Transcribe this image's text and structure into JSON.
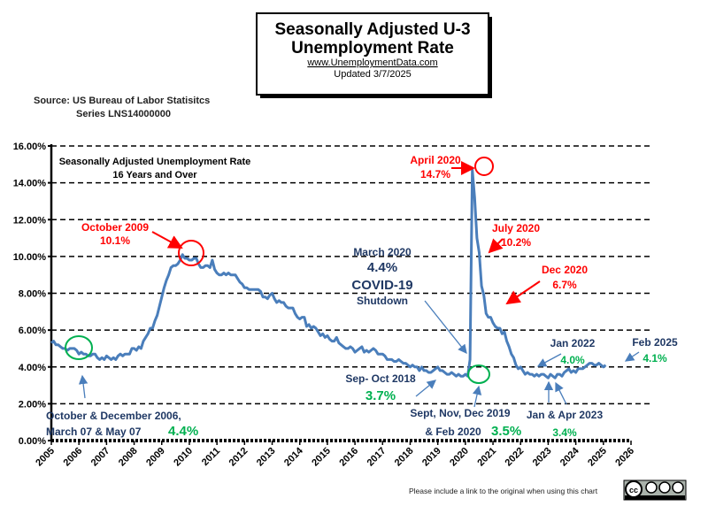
{
  "header": {
    "title_line1": "Seasonally Adjusted U-3",
    "title_line2": "Unemployment Rate",
    "url": "www.UnemploymentData.com",
    "updated": "Updated  3/7/2025"
  },
  "source": {
    "line1": "Source:  US  Bureau of Labor Statisitcs",
    "line2": "Series LNS14000000"
  },
  "footer": {
    "note": "Please include a link to the original when using this chart",
    "license_logo": "cc by-nc-nd"
  },
  "chart_data": {
    "type": "line",
    "title": "Seasonally Adjusted Unemployment Rate",
    "subtitle": "16 Years and Over",
    "xlabel": "",
    "ylabel": "",
    "x_ticks": [
      "2005",
      "2006",
      "2007",
      "2008",
      "2009",
      "2010",
      "2011",
      "2012",
      "2013",
      "2014",
      "2015",
      "2016",
      "2017",
      "2018",
      "2019",
      "2020",
      "2021",
      "2022",
      "2023",
      "2024",
      "2025",
      "2026"
    ],
    "y_ticks": [
      "0.00%",
      "2.00%",
      "4.00%",
      "6.00%",
      "8.00%",
      "10.00%",
      "12.00%",
      "14.00%",
      "16.00%"
    ],
    "xlim": [
      2005,
      2026
    ],
    "ylim": [
      0,
      16
    ],
    "grid": "horizontal dashed",
    "line_color": "#4a7ebb",
    "series": [
      {
        "start": "2005-01",
        "frequency": "monthly",
        "values": [
          5.3,
          5.4,
          5.2,
          5.2,
          5.1,
          5.0,
          5.0,
          4.9,
          5.0,
          5.0,
          5.0,
          4.9,
          4.7,
          4.8,
          4.7,
          4.7,
          4.6,
          4.6,
          4.7,
          4.7,
          4.5,
          4.4,
          4.5,
          4.4,
          4.6,
          4.5,
          4.4,
          4.5,
          4.4,
          4.6,
          4.7,
          4.6,
          4.7,
          4.7,
          4.7,
          5.0,
          5.0,
          4.9,
          5.1,
          5.0,
          5.4,
          5.6,
          5.8,
          6.1,
          6.1,
          6.5,
          6.8,
          7.3,
          7.8,
          8.3,
          8.7,
          9.0,
          9.4,
          9.5,
          9.5,
          9.6,
          9.8,
          10.1,
          9.9,
          9.9,
          9.8,
          9.8,
          9.9,
          9.9,
          9.6,
          9.4,
          9.4,
          9.5,
          9.5,
          9.4,
          9.8,
          9.3,
          9.1,
          9.0,
          9.0,
          9.1,
          9.0,
          9.1,
          9.0,
          9.0,
          9.0,
          8.8,
          8.6,
          8.5,
          8.3,
          8.3,
          8.2,
          8.2,
          8.2,
          8.2,
          8.2,
          8.1,
          7.8,
          7.8,
          7.7,
          7.9,
          8.0,
          7.7,
          7.5,
          7.6,
          7.5,
          7.5,
          7.3,
          7.2,
          7.2,
          7.2,
          6.9,
          6.7,
          6.6,
          6.7,
          6.7,
          6.2,
          6.3,
          6.1,
          6.2,
          6.1,
          5.9,
          5.7,
          5.8,
          5.6,
          5.7,
          5.5,
          5.4,
          5.4,
          5.6,
          5.3,
          5.2,
          5.1,
          5.0,
          5.0,
          5.1,
          5.0,
          4.8,
          4.9,
          5.0,
          5.1,
          4.8,
          4.9,
          4.8,
          4.9,
          5.0,
          4.9,
          4.7,
          4.7,
          4.7,
          4.6,
          4.4,
          4.4,
          4.4,
          4.3,
          4.3,
          4.4,
          4.3,
          4.2,
          4.2,
          4.1,
          4.0,
          4.1,
          4.0,
          4.0,
          3.8,
          4.0,
          3.8,
          3.8,
          3.7,
          3.7,
          3.8,
          3.9,
          4.0,
          3.8,
          3.8,
          3.7,
          3.6,
          3.6,
          3.7,
          3.6,
          3.5,
          3.6,
          3.5,
          3.5,
          3.6,
          3.5,
          4.4,
          14.7,
          13.2,
          11.0,
          10.2,
          8.4,
          7.9,
          6.9,
          6.7,
          6.7,
          6.4,
          6.2,
          6.1,
          6.1,
          5.8,
          5.9,
          5.4,
          5.1,
          4.7,
          4.5,
          4.1,
          3.9,
          4.0,
          3.8,
          3.6,
          3.7,
          3.6,
          3.6,
          3.5,
          3.6,
          3.5,
          3.6,
          3.6,
          3.5,
          3.4,
          3.6,
          3.5,
          3.4,
          3.6,
          3.6,
          3.5,
          3.7,
          3.8,
          3.9,
          3.7,
          3.8,
          3.7,
          3.9,
          3.9,
          3.9,
          4.0,
          4.1,
          4.2,
          4.2,
          4.1,
          4.1,
          4.2,
          4.1,
          4.0,
          4.1
        ]
      }
    ],
    "annotations": {
      "oct2009": {
        "label": "October 2009",
        "value": "10.1%",
        "color": "#ff0000"
      },
      "apr2020": {
        "label": "April 2020",
        "value": "14.7%",
        "color": "#ff0000"
      },
      "jul2020": {
        "label": "July 2020",
        "value": "10.2%",
        "color": "#ff0000"
      },
      "dec2020": {
        "label": "Dec 2020",
        "value": "6.7%",
        "color": "#ff0000"
      },
      "mar2020": {
        "label": "March 2020",
        "value": "4.4%",
        "line2": "COVID-19",
        "line3": "Shutdown",
        "color": "#1f3864"
      },
      "low2006": {
        "line1": "October & December 2006,",
        "line2": "March 07 & May 07",
        "value": "4.4%",
        "color": "#00b050"
      },
      "sep2018": {
        "label": "Sep- Oct 2018",
        "value": "3.7%"
      },
      "low2019": {
        "line1": "Sept, Nov, Dec 2019",
        "line2": "& Feb 2020",
        "value": "3.5%"
      },
      "jan2022": {
        "label": "Jan 2022",
        "value": "4.0%"
      },
      "low2023": {
        "label": "Jan & Apr 2023",
        "value": "3.4%"
      },
      "feb2025": {
        "label": "Feb 2025",
        "value": "4.1%"
      }
    }
  }
}
